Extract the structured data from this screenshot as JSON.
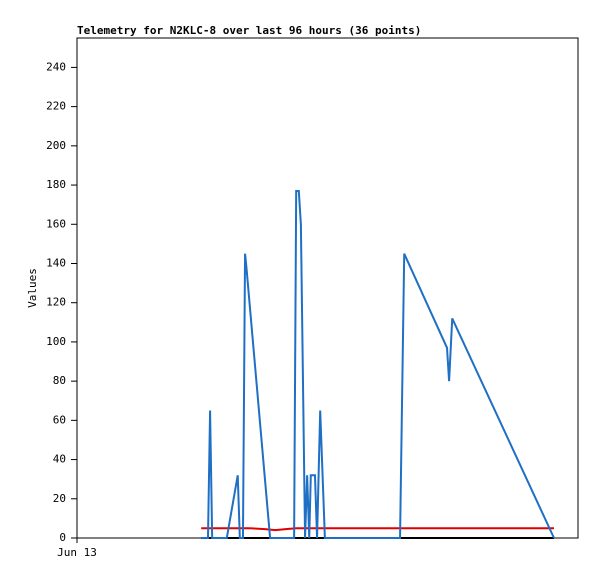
{
  "chart_data": {
    "type": "line",
    "title": "Telemetry for N2KLC-8 over last 96 hours (36 points)",
    "y_label": "Values",
    "xlim": [
      0,
      96
    ],
    "xticks": [
      {
        "value": 0,
        "label": "Jun 13"
      }
    ],
    "ylim": [
      0,
      255
    ],
    "yticks": [
      0,
      20,
      40,
      60,
      80,
      100,
      120,
      140,
      160,
      180,
      200,
      220,
      240
    ],
    "series": [
      {
        "color": "#000000",
        "x": [
          23.8,
          91.4
        ],
        "values": [
          0,
          0
        ]
      },
      {
        "color": "#e00000",
        "x": [
          23.8,
          33,
          36,
          38,
          40,
          42,
          91.4
        ],
        "values": [
          5,
          5,
          4.5,
          4,
          4.5,
          5,
          5
        ]
      },
      {
        "color": "#1f6fc5",
        "x": [
          23.8,
          25.1,
          25.5,
          25.9,
          28.7,
          30.8,
          31.2,
          31.8,
          32.2,
          32.4,
          37.0,
          41.6,
          42.0,
          42.5,
          42.9,
          43.7,
          44.1,
          44.5,
          44.8,
          45.6,
          46.0,
          46.6,
          47.5,
          61.9,
          62.7,
          70.9,
          71.3,
          71.9,
          91.4
        ],
        "values": [
          0,
          0,
          65,
          0,
          0,
          32,
          0,
          0,
          145,
          140,
          0,
          0,
          177,
          177,
          160,
          0,
          32,
          0,
          32,
          32,
          0,
          65,
          0,
          0,
          145,
          97,
          80,
          112,
          0
        ]
      }
    ]
  }
}
